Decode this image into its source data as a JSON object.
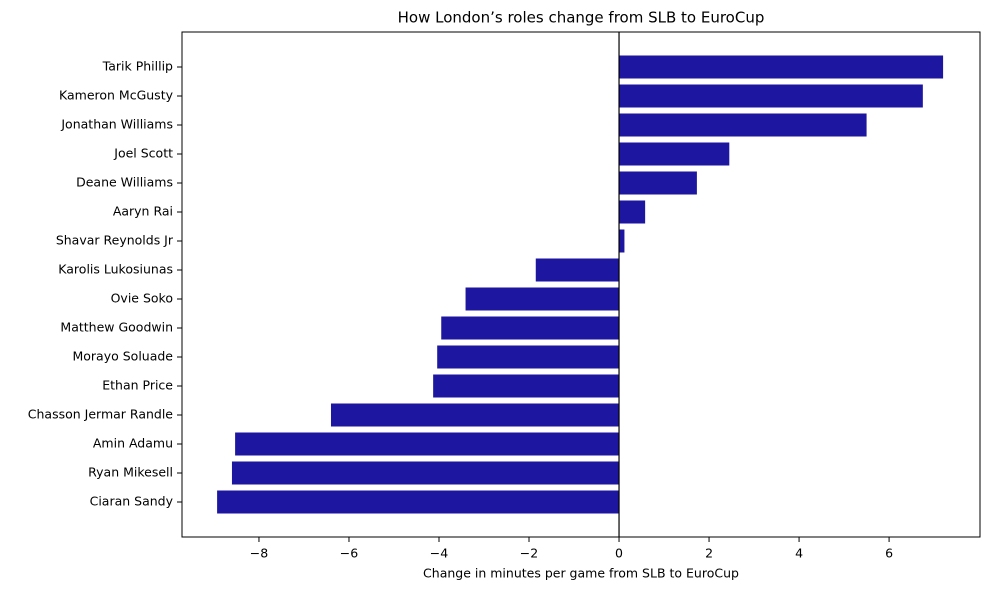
{
  "chart_data": {
    "type": "barh",
    "title": "How London’s roles change from SLB to EuroCup",
    "xlabel": "Change in minutes per game from SLB to EuroCup",
    "categories": [
      "Tarik Phillip",
      "Kameron McGusty",
      "Jonathan Williams",
      "Joel Scott",
      "Deane Williams",
      "Aaryn Rai",
      "Shavar Reynolds Jr",
      "Karolis Lukosiunas",
      "Ovie Soko",
      "Matthew Goodwin",
      "Morayo Soluade",
      "Ethan Price",
      "Chasson Jermar Randle",
      "Amin Adamu",
      "Ryan Mikesell",
      "Ciaran Sandy"
    ],
    "values": [
      7.2,
      6.75,
      5.5,
      2.45,
      1.73,
      0.58,
      0.12,
      -1.85,
      -3.41,
      -3.95,
      -4.04,
      -4.13,
      -6.4,
      -8.53,
      -8.6,
      -8.93
    ],
    "color": "#1c16a0",
    "xlim": [
      -9.71,
      8.02
    ],
    "xticks": [
      {
        "value": -8,
        "label": "−8"
      },
      {
        "value": -6,
        "label": "−6"
      },
      {
        "value": -4,
        "label": "−4"
      },
      {
        "value": -2,
        "label": "−2"
      },
      0,
      2,
      4,
      6
    ],
    "grid": false,
    "zero_line": true
  }
}
